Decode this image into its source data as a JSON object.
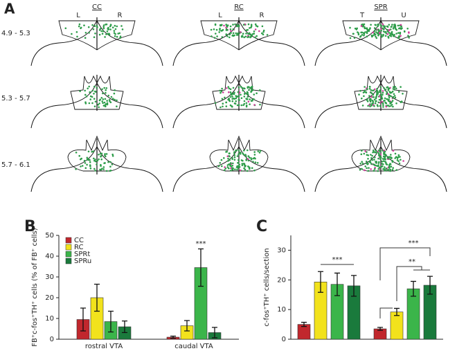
{
  "panel_a": {
    "label": "A",
    "columns": [
      "CC",
      "RC",
      "SPR"
    ],
    "sides": [
      [
        "L",
        "R"
      ],
      [
        "L",
        "R"
      ],
      [
        "T",
        "U"
      ]
    ],
    "rows": [
      "4.9 - 5.3",
      "5.3 - 5.7",
      "5.7 - 6.1"
    ]
  },
  "chart_data": [
    {
      "type": "bar",
      "panel": "B",
      "y_label": "FB⁺c-fos⁺TH⁺ cells (% of FB⁺ cells)",
      "categories": [
        "rostral VTA",
        "caudal VTA"
      ],
      "series": [
        {
          "name": "CC",
          "color": "#c1272d",
          "values": [
            9.5,
            1
          ],
          "errors": [
            5.5,
            0.5
          ]
        },
        {
          "name": "RC",
          "color": "#f2e21c",
          "values": [
            20,
            6.5
          ],
          "errors": [
            6.5,
            2.5
          ]
        },
        {
          "name": "SPRt",
          "color": "#3bb54a",
          "values": [
            8.5,
            34.5
          ],
          "errors": [
            5,
            9
          ]
        },
        {
          "name": "SPRu",
          "color": "#1a7a3c",
          "values": [
            6,
            3.2
          ],
          "errors": [
            2.8,
            2.5
          ]
        }
      ],
      "ylim": [
        0,
        50
      ],
      "yticks": [
        0,
        10,
        20,
        30,
        40,
        50
      ],
      "legend": "top-left",
      "annotations": [
        "***"
      ]
    },
    {
      "type": "bar",
      "panel": "C",
      "y_label": "c-fos⁺TH⁺ cells/section",
      "categories": [
        null,
        null
      ],
      "series": [
        {
          "name": "CC",
          "color": "#c1272d",
          "values": [
            5,
            3.5
          ],
          "errors": [
            0.7,
            0.5
          ]
        },
        {
          "name": "RC",
          "color": "#f2e21c",
          "values": [
            19.3,
            9.2
          ],
          "errors": [
            3.5,
            1.2
          ]
        },
        {
          "name": "SPRt",
          "color": "#3bb54a",
          "values": [
            18.5,
            17
          ],
          "errors": [
            3.8,
            2.5
          ]
        },
        {
          "name": "SPRu",
          "color": "#1a7a3c",
          "values": [
            18,
            18.2
          ],
          "errors": [
            3.5,
            3
          ]
        }
      ],
      "ylim": [
        0,
        35
      ],
      "yticks": [
        0,
        10,
        20,
        30
      ],
      "annotations": [
        "***",
        "***",
        "**"
      ]
    }
  ]
}
